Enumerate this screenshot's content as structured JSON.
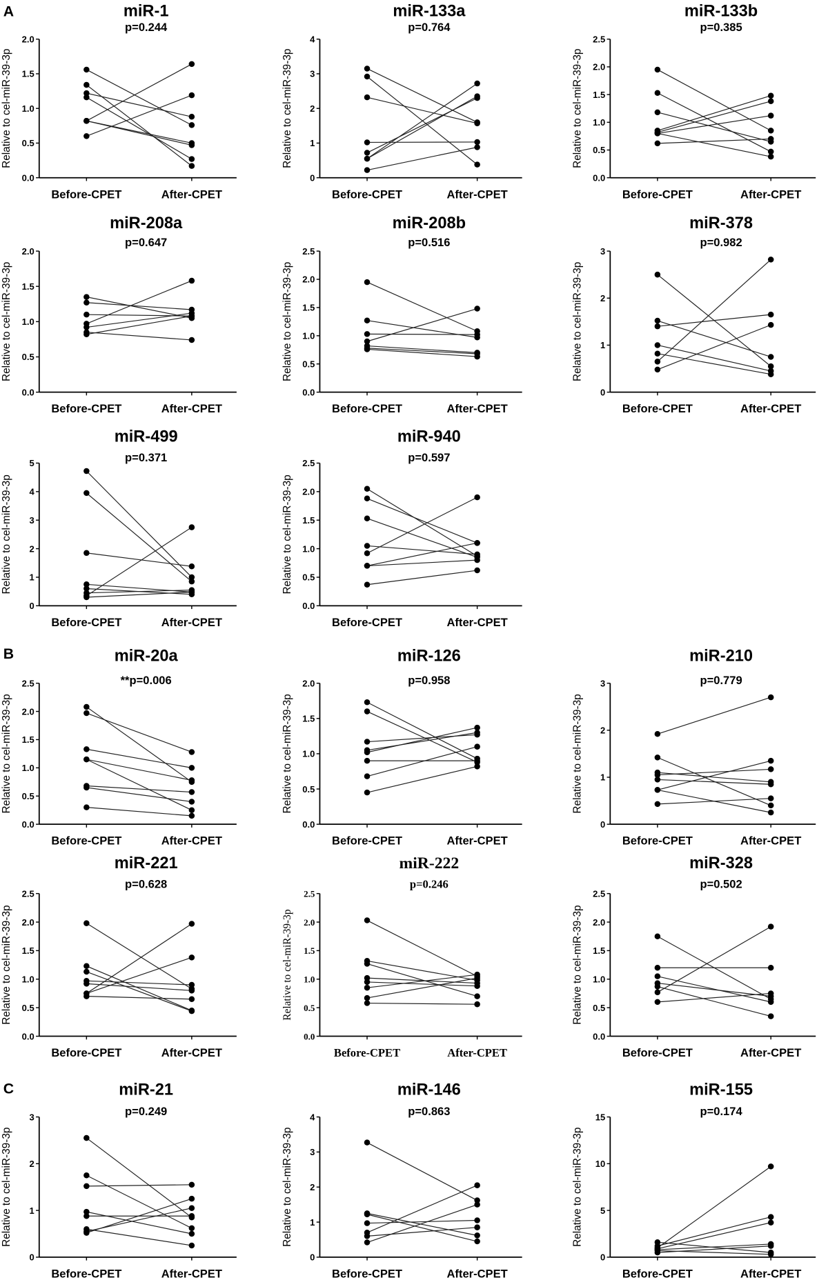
{
  "panel_letters": [
    "A",
    "B",
    "C"
  ],
  "chart_data": [
    {
      "type": "line",
      "title": "miR-1",
      "pvalue": "p=0.244",
      "ylabel": "Relative to cel-miR-39-3p",
      "categories": [
        "Before-CPET",
        "After-CPET"
      ],
      "ylim": [
        0,
        2
      ],
      "yticks": [
        "0.0",
        "0.5",
        "1.0",
        "1.5",
        "2.0"
      ],
      "pairs": [
        [
          1.56,
          0.76
        ],
        [
          1.34,
          0.17
        ],
        [
          1.22,
          0.88
        ],
        [
          1.16,
          0.27
        ],
        [
          0.82,
          1.64
        ],
        [
          0.82,
          0.47
        ],
        [
          0.82,
          0.5
        ],
        [
          0.6,
          1.19
        ]
      ]
    },
    {
      "type": "line",
      "title": "miR-133a",
      "pvalue": "p=0.764",
      "ylabel": "Relative to cel-miR-39-3p",
      "categories": [
        "Before-CPET",
        "After-CPET"
      ],
      "ylim": [
        0,
        4
      ],
      "yticks": [
        "0",
        "1",
        "2",
        "3",
        "4"
      ],
      "pairs": [
        [
          3.15,
          1.6
        ],
        [
          2.92,
          0.38
        ],
        [
          2.32,
          1.57
        ],
        [
          1.02,
          1.03
        ],
        [
          0.72,
          2.3
        ],
        [
          0.55,
          2.72
        ],
        [
          0.55,
          2.35
        ],
        [
          0.22,
          0.88
        ]
      ]
    },
    {
      "type": "line",
      "title": "miR-133b",
      "pvalue": "p=0.385",
      "ylabel": "Relative to cel-miR-39-3p",
      "categories": [
        "Before-CPET",
        "After-CPET"
      ],
      "ylim": [
        0,
        2.5
      ],
      "yticks": [
        "0.0",
        "0.5",
        "1.0",
        "1.5",
        "2.0",
        "2.5"
      ],
      "pairs": [
        [
          1.95,
          0.85
        ],
        [
          1.53,
          0.47
        ],
        [
          1.18,
          0.65
        ],
        [
          0.85,
          1.48
        ],
        [
          0.82,
          1.38
        ],
        [
          0.8,
          0.38
        ],
        [
          0.8,
          1.12
        ],
        [
          0.62,
          0.7
        ]
      ]
    },
    {
      "type": "line",
      "title": "miR-208a",
      "pvalue": "p=0.647",
      "ylabel": "Relative to cel-miR-39-3p",
      "categories": [
        "Before-CPET",
        "After-CPET"
      ],
      "ylim": [
        0,
        2
      ],
      "yticks": [
        "0.0",
        "0.5",
        "1.0",
        "1.5",
        "2.0"
      ],
      "pairs": [
        [
          1.35,
          1.05
        ],
        [
          1.27,
          1.17
        ],
        [
          1.1,
          1.08
        ],
        [
          0.97,
          1.58
        ],
        [
          0.92,
          1.12
        ],
        [
          0.85,
          0.74
        ],
        [
          0.82,
          1.08
        ]
      ]
    },
    {
      "type": "line",
      "title": "miR-208b",
      "pvalue": "p=0.516",
      "ylabel": "Relative to cel-miR-39-3p",
      "categories": [
        "Before-CPET",
        "After-CPET"
      ],
      "ylim": [
        0,
        2.5
      ],
      "yticks": [
        "0.0",
        "0.5",
        "1.0",
        "1.5",
        "2.0",
        "2.5"
      ],
      "pairs": [
        [
          1.95,
          1.08
        ],
        [
          1.27,
          0.97
        ],
        [
          1.03,
          1.02
        ],
        [
          0.9,
          1.48
        ],
        [
          0.82,
          0.7
        ],
        [
          0.78,
          0.68
        ],
        [
          0.76,
          0.63
        ]
      ]
    },
    {
      "type": "line",
      "title": "miR-378",
      "pvalue": "p=0.982",
      "ylabel": "Relative to cel-miR-39-3p",
      "categories": [
        "Before-CPET",
        "After-CPET"
      ],
      "ylim": [
        0,
        3
      ],
      "yticks": [
        "0",
        "1",
        "2",
        "3"
      ],
      "pairs": [
        [
          2.5,
          0.55
        ],
        [
          1.52,
          0.75
        ],
        [
          1.4,
          1.65
        ],
        [
          1.0,
          0.45
        ],
        [
          0.82,
          0.38
        ],
        [
          0.65,
          2.82
        ],
        [
          0.48,
          1.43
        ]
      ]
    },
    {
      "type": "line",
      "title": "miR-499",
      "pvalue": "p=0.371",
      "ylabel": "Relative to cel-miR-39-3p",
      "categories": [
        "Before-CPET",
        "After-CPET"
      ],
      "ylim": [
        0,
        5
      ],
      "yticks": [
        "0",
        "1",
        "2",
        "3",
        "4",
        "5"
      ],
      "pairs": [
        [
          4.72,
          1.0
        ],
        [
          3.95,
          0.85
        ],
        [
          1.85,
          1.38
        ],
        [
          0.75,
          0.48
        ],
        [
          0.6,
          0.4
        ],
        [
          0.45,
          0.55
        ],
        [
          0.35,
          2.75
        ],
        [
          0.3,
          0.48
        ]
      ]
    },
    {
      "type": "line",
      "title": "miR-940",
      "pvalue": "p=0.597",
      "ylabel": "Relative to cel-miR-39-3p",
      "categories": [
        "Before-CPET",
        "After-CPET"
      ],
      "ylim": [
        0,
        2.5
      ],
      "yticks": [
        "0.0",
        "0.5",
        "1.0",
        "1.5",
        "2.0",
        "2.5"
      ],
      "pairs": [
        [
          2.05,
          0.87
        ],
        [
          1.88,
          1.1
        ],
        [
          1.53,
          0.85
        ],
        [
          1.05,
          0.9
        ],
        [
          0.92,
          1.9
        ],
        [
          0.7,
          0.8
        ],
        [
          0.7,
          1.1
        ],
        [
          0.37,
          0.62
        ]
      ]
    },
    {
      "type": "line",
      "title": "miR-20a",
      "pvalue": "**p=0.006",
      "ylabel": "Relative to cel-miR-39-3p",
      "categories": [
        "Before-CPET",
        "After-CPET"
      ],
      "ylim": [
        0,
        2.5
      ],
      "yticks": [
        "0.0",
        "0.5",
        "1.0",
        "1.5",
        "2.0",
        "2.5"
      ],
      "pairs": [
        [
          2.08,
          0.75
        ],
        [
          1.97,
          1.28
        ],
        [
          1.33,
          1.0
        ],
        [
          1.15,
          0.78
        ],
        [
          1.15,
          0.25
        ],
        [
          0.68,
          0.57
        ],
        [
          0.65,
          0.4
        ],
        [
          0.3,
          0.15
        ]
      ]
    },
    {
      "type": "line",
      "title": "miR-126",
      "pvalue": "p=0.958",
      "ylabel": "Relative to cel-miR-39-3p",
      "categories": [
        "Before-CPET",
        "After-CPET"
      ],
      "ylim": [
        0,
        2
      ],
      "yticks": [
        "0.0",
        "0.5",
        "1.0",
        "1.5",
        "2.0"
      ],
      "pairs": [
        [
          1.73,
          0.93
        ],
        [
          1.6,
          0.88
        ],
        [
          1.17,
          1.27
        ],
        [
          1.05,
          1.3
        ],
        [
          1.02,
          1.37
        ],
        [
          0.9,
          0.9
        ],
        [
          0.68,
          1.1
        ],
        [
          0.45,
          0.82
        ]
      ]
    },
    {
      "type": "line",
      "title": "miR-210",
      "pvalue": "p=0.779",
      "ylabel": "Relative to cel-miR-39-3p",
      "categories": [
        "Before-CPET",
        "After-CPET"
      ],
      "ylim": [
        0,
        3
      ],
      "yticks": [
        "0",
        "1",
        "2",
        "3"
      ],
      "pairs": [
        [
          1.92,
          2.7
        ],
        [
          1.42,
          0.4
        ],
        [
          1.1,
          0.9
        ],
        [
          1.05,
          1.17
        ],
        [
          0.95,
          0.85
        ],
        [
          0.73,
          1.35
        ],
        [
          0.73,
          0.25
        ],
        [
          0.43,
          0.55
        ]
      ]
    },
    {
      "type": "line",
      "title": "miR-221",
      "pvalue": "p=0.628",
      "ylabel": "Relative to cel-miR-39-3p",
      "categories": [
        "Before-CPET",
        "After-CPET"
      ],
      "ylim": [
        0,
        2.5
      ],
      "yticks": [
        "0.0",
        "0.5",
        "1.0",
        "1.5",
        "2.0",
        "2.5"
      ],
      "pairs": [
        [
          1.98,
          0.83
        ],
        [
          1.23,
          0.45
        ],
        [
          1.13,
          0.44
        ],
        [
          0.97,
          0.9
        ],
        [
          0.92,
          0.8
        ],
        [
          0.75,
          1.97
        ],
        [
          0.75,
          1.38
        ],
        [
          0.7,
          0.65
        ]
      ]
    },
    {
      "type": "line",
      "title": "miR-222",
      "pvalue": "p=0.246",
      "ylabel": "Relative to cel-miR-39-3p",
      "categories": [
        "Before-CPET",
        "After-CPET"
      ],
      "ylim": [
        0,
        2.5
      ],
      "yticks": [
        "0.0",
        "0.5",
        "1.0",
        "1.5",
        "2.0",
        "2.5"
      ],
      "pairs": [
        [
          2.03,
          1.05
        ],
        [
          1.32,
          0.98
        ],
        [
          1.27,
          0.7
        ],
        [
          1.02,
          0.93
        ],
        [
          0.95,
          0.88
        ],
        [
          0.85,
          1.08
        ],
        [
          0.67,
          1.02
        ],
        [
          0.58,
          0.56
        ]
      ]
    },
    {
      "type": "line",
      "title": "miR-328",
      "pvalue": "p=0.502",
      "ylabel": "Relative to cel-miR-39-3p",
      "categories": [
        "Before-CPET",
        "After-CPET"
      ],
      "ylim": [
        0,
        2.5
      ],
      "yticks": [
        "0.0",
        "0.5",
        "1.0",
        "1.5",
        "2.0",
        "2.5"
      ],
      "pairs": [
        [
          1.75,
          0.65
        ],
        [
          1.2,
          1.2
        ],
        [
          1.05,
          0.6
        ],
        [
          0.93,
          0.7
        ],
        [
          0.87,
          0.35
        ],
        [
          0.77,
          1.92
        ],
        [
          0.6,
          0.75
        ]
      ]
    },
    {
      "type": "line",
      "title": "miR-21",
      "pvalue": "p=0.249",
      "ylabel": "Relative to cel-miR-39-3p",
      "categories": [
        "Before-CPET",
        "After-CPET"
      ],
      "ylim": [
        0,
        3
      ],
      "yticks": [
        "0",
        "1",
        "2",
        "3"
      ],
      "pairs": [
        [
          2.55,
          0.85
        ],
        [
          1.75,
          0.62
        ],
        [
          1.52,
          1.55
        ],
        [
          0.97,
          0.5
        ],
        [
          0.88,
          0.88
        ],
        [
          0.6,
          0.25
        ],
        [
          0.55,
          1.05
        ],
        [
          0.52,
          1.25
        ]
      ]
    },
    {
      "type": "line",
      "title": "miR-146",
      "pvalue": "p=0.863",
      "ylabel": "Relative to cel-miR-39-3p",
      "categories": [
        "Before-CPET",
        "After-CPET"
      ],
      "ylim": [
        0,
        4
      ],
      "yticks": [
        "0",
        "1",
        "2",
        "3",
        "4"
      ],
      "pairs": [
        [
          3.27,
          1.62
        ],
        [
          1.25,
          0.62
        ],
        [
          1.22,
          0.45
        ],
        [
          0.97,
          1.05
        ],
        [
          0.7,
          2.05
        ],
        [
          0.6,
          0.85
        ],
        [
          0.42,
          1.5
        ]
      ]
    },
    {
      "type": "line",
      "title": "miR-155",
      "pvalue": "p=0.174",
      "ylabel": "Relative to cel-miR-39-3p",
      "categories": [
        "Before-CPET",
        "After-CPET"
      ],
      "ylim": [
        0,
        15
      ],
      "yticks": [
        "0",
        "5",
        "10",
        "15"
      ],
      "pairs": [
        [
          1.6,
          0.5
        ],
        [
          1.2,
          4.3
        ],
        [
          1.0,
          9.7
        ],
        [
          0.9,
          3.7
        ],
        [
          0.8,
          1.4
        ],
        [
          0.7,
          0.3
        ],
        [
          0.5,
          1.2
        ]
      ]
    }
  ]
}
